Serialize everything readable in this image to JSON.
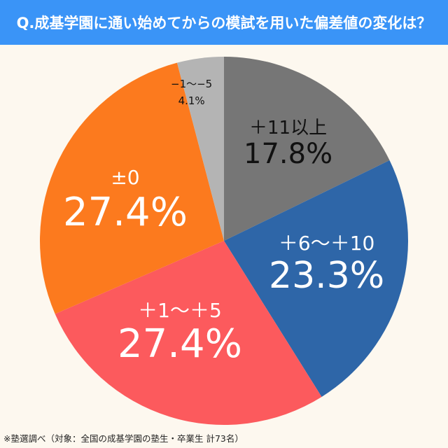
{
  "header": {
    "title": "Q.成基学園に通い始めてからの模試を用いた偏差値の変化は？"
  },
  "footer": {
    "note": "※塾選調べ（対象：全国の成基学園の塾生・卒業生 計73名）"
  },
  "chart_data": {
    "type": "pie",
    "title": "Q.成基学園に通い始めてからの模試を用いた偏差値の変化は？",
    "start_angle": "12 o'clock, clockwise",
    "categories": [
      "＋11以上",
      "＋6〜＋10",
      "＋1〜＋5",
      "±0",
      "−1〜−5"
    ],
    "values": [
      17.8,
      23.3,
      27.4,
      27.4,
      4.1
    ],
    "labels": [
      "17.8%",
      "23.3%",
      "27.4%",
      "27.4%",
      "4.1%"
    ],
    "colors": [
      "#767676",
      "#2e66a8",
      "#fc5a5d",
      "#fc7a1e",
      "#b4b4b4"
    ],
    "label_colors": [
      "#111111",
      "#ffffff",
      "#ffffff",
      "#ffffff",
      "#111111"
    ],
    "legend": "none (labels inside slices)",
    "note": "※塾選調べ（対象：全国の成基学園の塾生・卒業生 計73名）"
  }
}
